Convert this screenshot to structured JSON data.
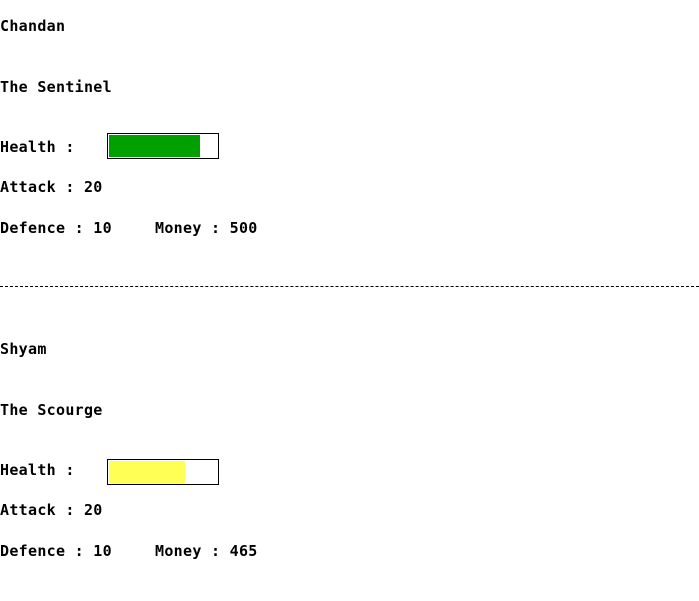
{
  "players": [
    {
      "name": "Chandan",
      "title": "The Sentinel",
      "health_label": "Health :",
      "health_fraction": 0.84,
      "health_color": "#00a000",
      "attack": "Attack : 20",
      "defence": "Defence : 10",
      "money": "Money : 500"
    },
    {
      "name": "Shyam",
      "title": "The Scourge",
      "health_label": "Health :",
      "health_fraction": 0.7,
      "health_color": "#ffff55",
      "attack": "Attack : 20",
      "defence": "Defence : 10",
      "money": "Money : 465"
    }
  ],
  "divider_style": "dashed"
}
